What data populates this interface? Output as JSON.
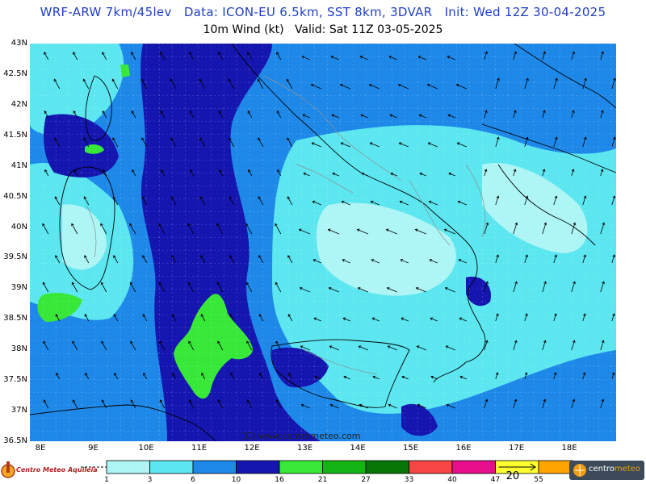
{
  "header": {
    "line1": "WRF-ARW 7km/45lev   Data: ICON-EU 6.5km, SST 8km, 3DVAR   Init: Wed 12Z 30-04-2025",
    "line2": "10m Wind (kt)   Valid: Sat 11Z 03-05-2025"
  },
  "map": {
    "lat_labels": [
      "43N",
      "42.5N",
      "42N",
      "41.5N",
      "41N",
      "40.5N",
      "40N",
      "39.5N",
      "39N",
      "38.5N",
      "38N",
      "37.5N",
      "37N",
      "36.5N"
    ],
    "lon_labels": [
      "8E",
      "9E",
      "10E",
      "11E",
      "12E",
      "13E",
      "14E",
      "15E",
      "16E",
      "17E",
      "18E"
    ],
    "credit": "(C) www.centrometeo.com"
  },
  "legend": {
    "colors": [
      "#aef5f5",
      "#5ce6f0",
      "#1e88e8",
      "#1515b0",
      "#38e838",
      "#14b414",
      "#067606",
      "#f54545",
      "#e80d8a",
      "#ffff30",
      "#ffa500"
    ],
    "labels": [
      "1",
      "3",
      "6",
      "10",
      "16",
      "21",
      "27",
      "33",
      "40",
      "47",
      "55"
    ],
    "vector_ref": "20"
  },
  "logos": {
    "left": "Centro Meteo Aquileia",
    "right_a": "centro",
    "right_b": "meteo"
  }
}
